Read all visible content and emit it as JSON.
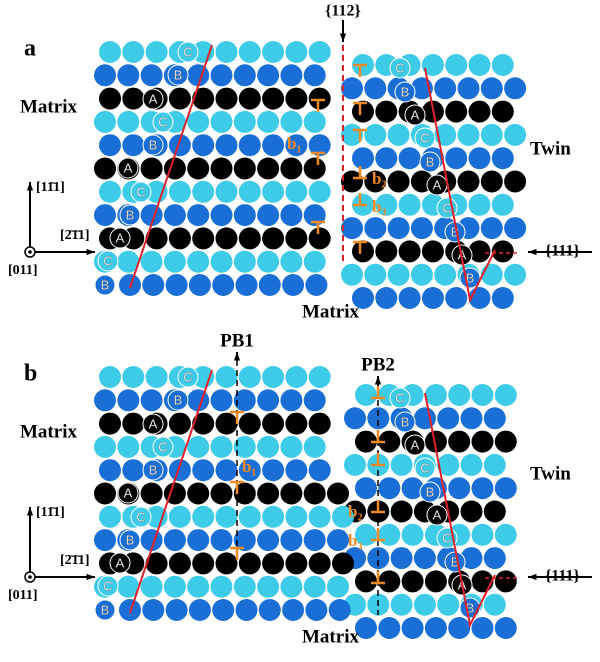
{
  "panels": [
    {
      "label": "a",
      "plane_top": "{112}",
      "matrix_left": "Matrix",
      "twin": "Twin",
      "matrix_bottom": "Matrix",
      "plane_right": "{111}",
      "axis_up": "[11̄1]",
      "axis_right": "[2̄1̄1]",
      "axis_origin": "[011]",
      "burgers": [
        "b₁",
        "b₂",
        "b₃"
      ],
      "atom_labels": [
        "C",
        "B",
        "A",
        "C",
        "B",
        "A",
        "C",
        "B",
        "A",
        "C",
        "B",
        "C",
        "B",
        "A",
        "C",
        "B",
        "A",
        "C",
        "B",
        "A",
        "B"
      ]
    },
    {
      "label": "b",
      "boundaries": [
        "PB1",
        "PB2"
      ],
      "matrix_left": "Matrix",
      "twin": "Twin",
      "matrix_bottom": "Matrix",
      "plane_right": "{111}",
      "axis_up": "[11̄1]",
      "axis_right": "[2̄1̄1]",
      "axis_origin": "[011]",
      "burgers": [
        "b₁",
        "b₂",
        "b₃"
      ],
      "atom_labels": [
        "C",
        "B",
        "A",
        "C",
        "B",
        "A",
        "C",
        "B",
        "A",
        "C",
        "B",
        "C",
        "B",
        "A",
        "C",
        "B",
        "A",
        "C",
        "B",
        "A",
        "B"
      ]
    }
  ]
}
